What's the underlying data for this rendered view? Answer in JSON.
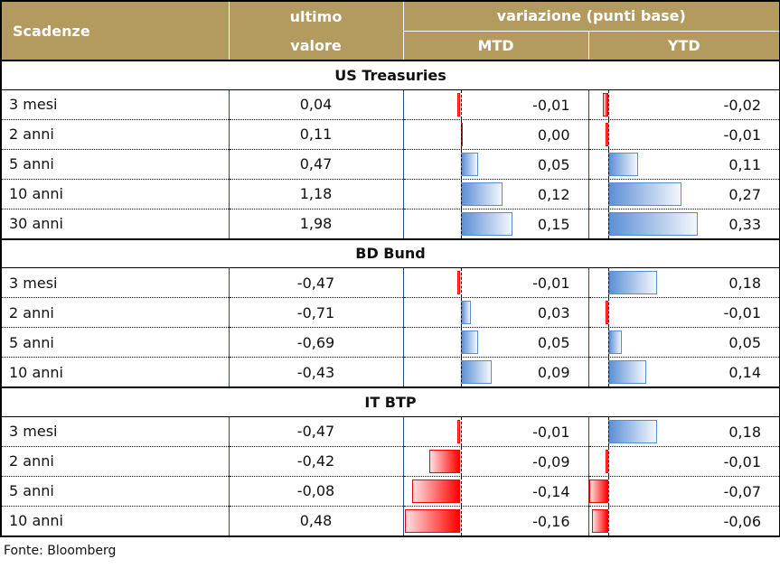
{
  "header": {
    "scadenze": "Scadenze",
    "ultimo_valore_1": "ultimo",
    "ultimo_valore_2": "valore",
    "variazione": "variazione (punti base)",
    "mtd": "MTD",
    "ytd": "YTD"
  },
  "sections": [
    {
      "title": "US Treasuries",
      "rows": [
        {
          "label": "3 mesi",
          "value": "0,04",
          "mtd": -0.01,
          "mtd_label": "-0,01",
          "ytd": -0.02,
          "ytd_label": "-0,02"
        },
        {
          "label": "2 anni",
          "value": "0,11",
          "mtd": 0.0,
          "mtd_label": "0,00",
          "ytd": -0.01,
          "ytd_label": "-0,01"
        },
        {
          "label": "5 anni",
          "value": "0,47",
          "mtd": 0.05,
          "mtd_label": "0,05",
          "ytd": 0.11,
          "ytd_label": "0,11"
        },
        {
          "label": "10 anni",
          "value": "1,18",
          "mtd": 0.12,
          "mtd_label": "0,12",
          "ytd": 0.27,
          "ytd_label": "0,27"
        },
        {
          "label": "30 anni",
          "value": "1,98",
          "mtd": 0.15,
          "mtd_label": "0,15",
          "ytd": 0.33,
          "ytd_label": "0,33"
        }
      ]
    },
    {
      "title": "BD Bund",
      "rows": [
        {
          "label": "3 mesi",
          "value": "-0,47",
          "mtd": -0.01,
          "mtd_label": "-0,01",
          "ytd": 0.18,
          "ytd_label": "0,18"
        },
        {
          "label": "2 anni",
          "value": "-0,71",
          "mtd": 0.03,
          "mtd_label": "0,03",
          "ytd": -0.01,
          "ytd_label": "-0,01"
        },
        {
          "label": "5 anni",
          "value": "-0,69",
          "mtd": 0.05,
          "mtd_label": "0,05",
          "ytd": 0.05,
          "ytd_label": "0,05"
        },
        {
          "label": "10 anni",
          "value": "-0,43",
          "mtd": 0.09,
          "mtd_label": "0,09",
          "ytd": 0.14,
          "ytd_label": "0,14"
        }
      ]
    },
    {
      "title": "IT BTP",
      "rows": [
        {
          "label": "3 mesi",
          "value": "-0,47",
          "mtd": -0.01,
          "mtd_label": "-0,01",
          "ytd": 0.18,
          "ytd_label": "0,18"
        },
        {
          "label": "2 anni",
          "value": "-0,42",
          "mtd": -0.09,
          "mtd_label": "-0,09",
          "ytd": -0.01,
          "ytd_label": "-0,01"
        },
        {
          "label": "5 anni",
          "value": "-0,08",
          "mtd": -0.14,
          "mtd_label": "-0,14",
          "ytd": -0.07,
          "ytd_label": "-0,07"
        },
        {
          "label": "10 anni",
          "value": "0,48",
          "mtd": -0.16,
          "mtd_label": "-0,16",
          "ytd": -0.06,
          "ytd_label": "-0,06"
        }
      ]
    }
  ],
  "source": "Fonte: Bloomberg",
  "colors": {
    "header": "#b39a5e",
    "positive": "#5b8fd6",
    "negative": "#ff0000"
  }
}
